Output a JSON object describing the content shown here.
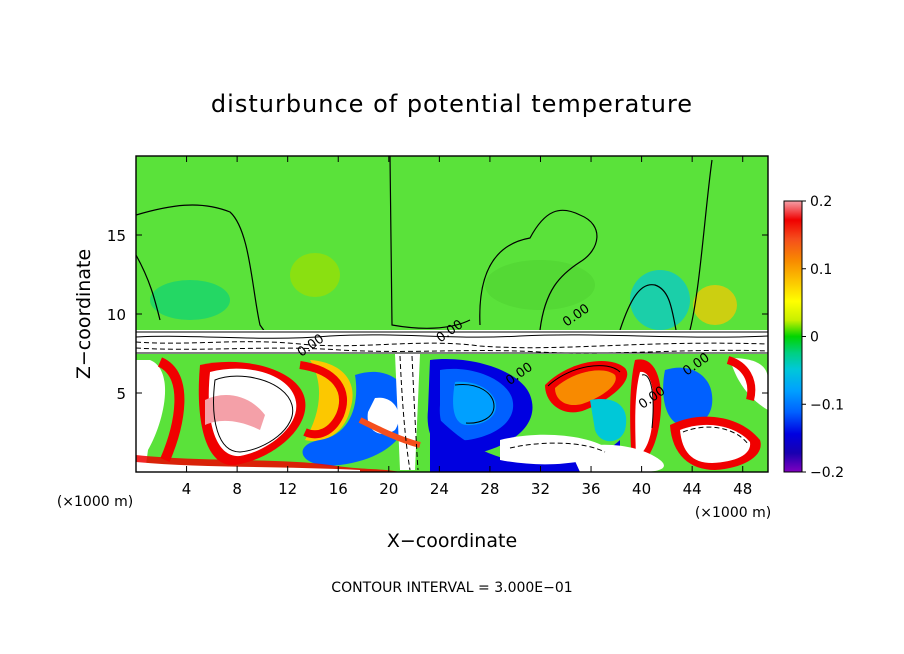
{
  "chart_data": {
    "type": "heatmap",
    "title": "disturbunce of potential temperature",
    "xlabel": "X−coordinate",
    "ylabel": "Z−coordinate",
    "x_unit_left": "(×1000 m)",
    "x_unit_right": "(×1000 m)",
    "footnote": "CONTOUR INTERVAL = 3.000E−01",
    "xlim": [
      0,
      50
    ],
    "ylim": [
      0,
      20
    ],
    "x_ticks": [
      4,
      8,
      12,
      16,
      20,
      24,
      28,
      32,
      36,
      40,
      44,
      48
    ],
    "y_ticks": [
      5,
      10,
      15
    ],
    "colorbar": {
      "range": [
        -0.2,
        0.2
      ],
      "tick_values": [
        0.2,
        0.1,
        0,
        -0.1,
        -0.2
      ],
      "tick_labels": [
        "0.2",
        "0.1",
        "0",
        "−0.1",
        "−0.2"
      ],
      "colors": [
        "#f4a0a8",
        "#f00000",
        "#f54e1c",
        "#f88a00",
        "#fcc800",
        "#ffff00",
        "#c8f000",
        "#66e000",
        "#00d400",
        "#00d080",
        "#00c8d8",
        "#00a0ff",
        "#0060ff",
        "#0000e0",
        "#1800b0",
        "#8000c0"
      ]
    },
    "background_color": "#5ae23a",
    "contour_labels": [
      {
        "x": 30.5,
        "z": 6.0,
        "text": "0.00"
      },
      {
        "x": 35.0,
        "z": 9.7,
        "text": "0.00"
      },
      {
        "x": 44.5,
        "z": 6.6,
        "text": "0.00"
      },
      {
        "x": 41.0,
        "z": 4.5,
        "text": "0.00"
      },
      {
        "x": 14.0,
        "z": 7.8,
        "text": "0.00"
      },
      {
        "x": 25.0,
        "z": 8.7,
        "text": "0.00"
      }
    ]
  }
}
